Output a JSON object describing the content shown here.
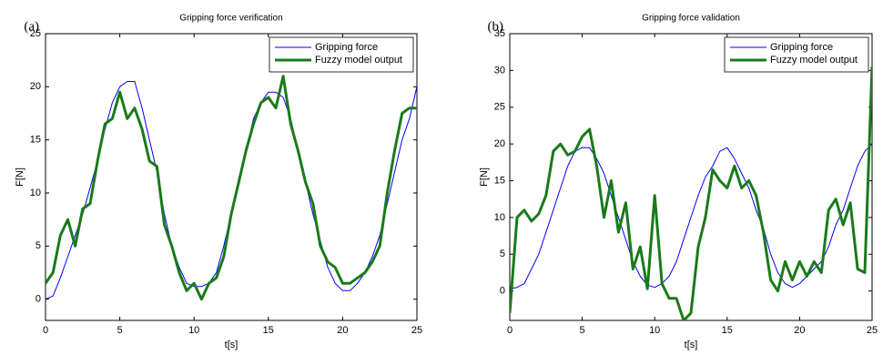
{
  "chart_data": [
    {
      "type": "line",
      "panel": "(a)",
      "title": "Gripping force verification",
      "xlabel": "t[s]",
      "ylabel": "F[N]",
      "xlim": [
        0,
        25
      ],
      "xticks": [
        0,
        5,
        10,
        15,
        20,
        25
      ],
      "ylim": [
        -2,
        25
      ],
      "yticks": [
        0,
        5,
        10,
        15,
        20,
        25
      ],
      "legend": "upper right",
      "x": [
        0,
        0.5,
        1,
        1.5,
        2,
        2.5,
        3,
        3.5,
        4,
        4.5,
        5,
        5.5,
        6,
        6.5,
        7,
        7.5,
        8,
        8.5,
        9,
        9.5,
        10,
        10.5,
        11,
        11.5,
        12,
        12.5,
        13,
        13.5,
        14,
        14.5,
        15,
        15.5,
        16,
        16.5,
        17,
        17.5,
        18,
        18.5,
        19,
        19.5,
        20,
        20.5,
        21,
        21.5,
        22,
        22.5,
        23,
        23.5,
        24,
        24.5,
        25
      ],
      "series": [
        {
          "name": "Gripping force",
          "color": "#0000ff",
          "width": 1,
          "values": [
            0,
            0.3,
            2,
            4,
            6,
            8,
            10.5,
            13,
            16,
            18.5,
            20,
            20.5,
            20.5,
            18,
            15,
            12,
            8,
            5,
            3,
            1.5,
            1.2,
            1.2,
            1.5,
            2.5,
            5,
            8,
            11,
            14,
            17,
            18.5,
            19.5,
            19.5,
            19,
            17,
            14,
            11,
            8,
            5.5,
            3,
            1.5,
            0.8,
            0.8,
            1.5,
            2.5,
            4,
            6,
            9,
            12,
            15,
            17,
            20
          ]
        },
        {
          "name": "Fuzzy model output",
          "color": "#1a7a1a",
          "width": 3,
          "values": [
            1.5,
            2.5,
            6,
            7.5,
            5,
            8.5,
            9,
            13,
            16.5,
            17,
            19.5,
            17,
            18,
            16,
            13,
            12.5,
            7,
            5,
            2.5,
            0.8,
            1.5,
            0,
            1.5,
            2,
            4,
            8,
            11,
            14,
            16.5,
            18.5,
            19,
            18,
            21,
            16.5,
            14,
            11,
            9,
            5,
            3.5,
            3,
            1.5,
            1.5,
            2,
            2.5,
            3.5,
            5,
            10,
            14,
            17.5,
            18,
            18
          ]
        }
      ]
    },
    {
      "type": "line",
      "panel": "(b)",
      "title": "Gripping force validation",
      "xlabel": "t[s]",
      "ylabel": "F[N]",
      "xlim": [
        0,
        25
      ],
      "xticks": [
        0,
        5,
        10,
        15,
        20,
        25
      ],
      "ylim": [
        -4,
        35
      ],
      "yticks": [
        0,
        5,
        10,
        15,
        20,
        25,
        30,
        35
      ],
      "legend": "upper right",
      "x": [
        0,
        0.5,
        1,
        1.5,
        2,
        2.5,
        3,
        3.5,
        4,
        4.5,
        5,
        5.5,
        6,
        6.5,
        7,
        7.5,
        8,
        8.5,
        9,
        9.5,
        10,
        10.5,
        11,
        11.5,
        12,
        12.5,
        13,
        13.5,
        14,
        14.5,
        15,
        15.5,
        16,
        16.5,
        17,
        17.5,
        18,
        18.5,
        19,
        19.5,
        20,
        20.5,
        21,
        21.5,
        22,
        22.5,
        23,
        23.5,
        24,
        24.5,
        25
      ],
      "series": [
        {
          "name": "Gripping force",
          "color": "#0000ff",
          "width": 1,
          "values": [
            0.3,
            0.5,
            1,
            3,
            5,
            8,
            11,
            14,
            17,
            19,
            19.5,
            19.5,
            18,
            16,
            13,
            10,
            7,
            4,
            2,
            0.8,
            0.5,
            1,
            2,
            4,
            7,
            10,
            13,
            15.5,
            17,
            19,
            19.5,
            18,
            16,
            14,
            11,
            8.5,
            5,
            2.5,
            1,
            0.5,
            1,
            2,
            3,
            4,
            6,
            9,
            11,
            14,
            17,
            19,
            20
          ]
        },
        {
          "name": "Fuzzy model output",
          "color": "#1a7a1a",
          "width": 3,
          "values": [
            -3,
            10,
            11,
            9.5,
            10.5,
            13,
            19,
            20,
            18.5,
            19,
            21,
            22,
            17,
            10,
            15,
            8,
            12,
            3,
            6,
            0.3,
            13,
            1,
            -1,
            -1,
            -4,
            -3,
            6,
            10,
            16.5,
            15,
            14,
            17,
            14,
            15,
            13,
            8,
            1.5,
            0,
            4,
            1.5,
            4,
            2,
            4,
            2.5,
            11,
            12.5,
            9,
            12,
            3,
            2.5,
            30.5
          ]
        }
      ]
    }
  ]
}
